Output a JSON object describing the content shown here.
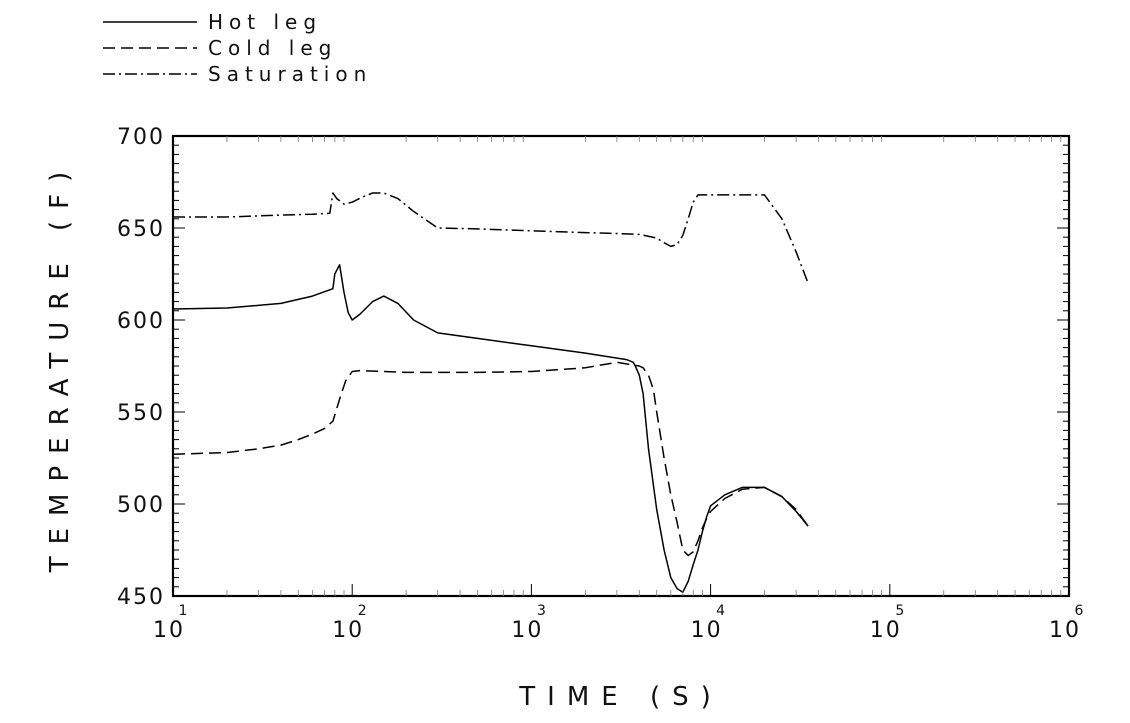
{
  "chart_data": {
    "type": "line",
    "xlabel": "TIME (S)",
    "ylabel": "TEMPERATURE (F)",
    "x_scale": "log",
    "xlim": [
      10,
      1000000
    ],
    "ylim": [
      450,
      700
    ],
    "y_ticks": [
      450,
      500,
      550,
      600,
      650,
      700
    ],
    "x_tick_labels": [
      {
        "base": "10",
        "exp": "1"
      },
      {
        "base": "10",
        "exp": "2"
      },
      {
        "base": "10",
        "exp": "3"
      },
      {
        "base": "10",
        "exp": "4"
      },
      {
        "base": "10",
        "exp": "5"
      },
      {
        "base": "10",
        "exp": "6"
      }
    ],
    "legend_position": "top-left",
    "series": [
      {
        "name": "Hot leg",
        "style": "solid",
        "x": [
          10,
          20,
          40,
          60,
          78,
          80,
          85,
          90,
          95,
          100,
          110,
          130,
          150,
          180,
          220,
          300,
          500,
          1000,
          2000,
          3400,
          3700,
          3800,
          4000,
          4200,
          4500,
          5000,
          5500,
          6000,
          6500,
          7000,
          7500,
          8000,
          8500,
          9000,
          9500,
          10000,
          12000,
          15000,
          20000,
          25000,
          30000,
          35000
        ],
        "y": [
          606,
          606.5,
          609,
          613,
          617,
          625,
          630,
          615,
          604,
          600,
          603,
          610,
          613,
          609,
          600,
          593,
          590,
          586,
          582,
          578.5,
          577,
          575,
          570,
          560,
          530,
          497,
          475,
          460,
          454,
          452,
          458,
          467,
          475,
          485,
          493,
          499,
          505,
          509,
          509,
          504,
          496,
          488
        ]
      },
      {
        "name": "Cold leg",
        "style": "dashed",
        "x": [
          10,
          20,
          30,
          40,
          50,
          60,
          70,
          78,
          85,
          92,
          100,
          110,
          150,
          200,
          300,
          500,
          1000,
          2000,
          3000,
          4000,
          4200,
          4500,
          4800,
          5000,
          5500,
          6000,
          6500,
          7000,
          7500,
          8000,
          8500,
          9000,
          9500,
          10000,
          12000,
          15000,
          20000,
          25000,
          30000,
          35000
        ],
        "y": [
          527,
          528,
          530,
          532,
          535,
          538,
          541,
          545,
          557,
          567,
          572,
          572.5,
          572,
          571.5,
          571.5,
          571.5,
          572,
          574,
          577,
          575,
          574,
          570,
          562,
          550,
          525,
          505,
          490,
          475,
          472,
          474,
          480,
          487,
          492,
          496,
          503,
          508,
          509,
          504,
          497,
          488
        ]
      },
      {
        "name": "Saturation",
        "style": "dashdot",
        "x": [
          10,
          20,
          40,
          60,
          75,
          78,
          82,
          90,
          100,
          115,
          130,
          150,
          180,
          220,
          280,
          300,
          500,
          1000,
          2000,
          3000,
          4000,
          5000,
          5500,
          6000,
          6500,
          7000,
          7500,
          8000,
          8500,
          9000,
          10000,
          12000,
          15000,
          20000,
          25000,
          30000,
          35000
        ],
        "y": [
          656,
          656,
          657,
          657.5,
          658,
          669,
          666,
          663,
          664,
          667,
          669,
          669,
          666,
          659,
          652,
          650,
          649.5,
          648.5,
          647.5,
          647,
          646.5,
          644.5,
          642,
          640,
          641,
          646,
          655,
          664,
          668,
          668,
          668,
          668,
          668,
          668,
          655,
          637,
          620
        ]
      }
    ]
  }
}
